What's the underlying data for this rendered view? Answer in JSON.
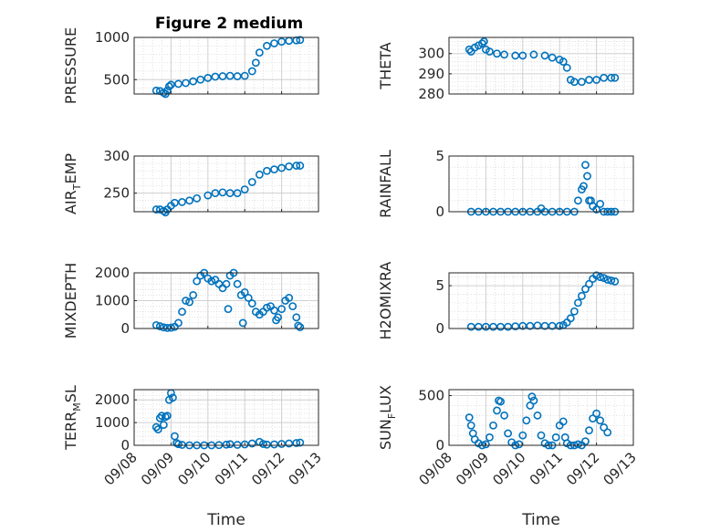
{
  "chart_data": [
    {
      "type": "scatter",
      "title": "Figure 2 medium",
      "ylabel": [
        "PRESSURE"
      ],
      "xlim": [
        1,
        6
      ],
      "ylim": [
        330,
        1000
      ],
      "yticks": [
        500,
        1000
      ],
      "ytick_labels": [
        "500",
        "1000"
      ],
      "xticks": [],
      "xtick_labels": [],
      "xlabel": "",
      "grid": true,
      "color": "#0072BD",
      "points": [
        [
          1.6,
          370
        ],
        [
          1.7,
          365
        ],
        [
          1.8,
          345
        ],
        [
          1.85,
          330
        ],
        [
          1.9,
          370
        ],
        [
          1.95,
          420
        ],
        [
          2.0,
          440
        ],
        [
          2.2,
          450
        ],
        [
          2.4,
          460
        ],
        [
          2.6,
          480
        ],
        [
          2.8,
          500
        ],
        [
          3.0,
          520
        ],
        [
          3.2,
          535
        ],
        [
          3.4,
          540
        ],
        [
          3.6,
          545
        ],
        [
          3.8,
          540
        ],
        [
          4.0,
          545
        ],
        [
          4.2,
          600
        ],
        [
          4.3,
          700
        ],
        [
          4.4,
          820
        ],
        [
          4.6,
          900
        ],
        [
          4.8,
          930
        ],
        [
          5.0,
          950
        ],
        [
          5.2,
          960
        ],
        [
          5.4,
          965
        ],
        [
          5.5,
          970
        ]
      ]
    },
    {
      "type": "scatter",
      "ylabel": [
        "THETA"
      ],
      "xlim": [
        1,
        6
      ],
      "ylim": [
        280,
        308
      ],
      "yticks": [
        280,
        290,
        300
      ],
      "ytick_labels": [
        "280",
        "290",
        "300"
      ],
      "xticks": [],
      "xtick_labels": [],
      "xlabel": "",
      "grid": true,
      "color": "#0072BD",
      "points": [
        [
          1.55,
          302
        ],
        [
          1.6,
          301
        ],
        [
          1.7,
          303
        ],
        [
          1.8,
          304
        ],
        [
          1.9,
          305
        ],
        [
          1.95,
          306
        ],
        [
          2.0,
          302
        ],
        [
          2.1,
          301
        ],
        [
          2.3,
          300
        ],
        [
          2.5,
          299.5
        ],
        [
          2.8,
          299
        ],
        [
          3.0,
          299
        ],
        [
          3.3,
          299.5
        ],
        [
          3.6,
          299
        ],
        [
          3.8,
          298
        ],
        [
          4.0,
          297
        ],
        [
          4.1,
          296
        ],
        [
          4.2,
          293
        ],
        [
          4.3,
          287
        ],
        [
          4.4,
          286
        ],
        [
          4.6,
          286
        ],
        [
          4.8,
          287
        ],
        [
          5.0,
          287
        ],
        [
          5.2,
          288
        ],
        [
          5.4,
          288
        ],
        [
          5.5,
          288
        ]
      ]
    },
    {
      "type": "scatter",
      "ylabel": [
        "AIR",
        "T",
        "EMP"
      ],
      "xlim": [
        1,
        6
      ],
      "ylim": [
        225,
        300
      ],
      "yticks": [
        250,
        300
      ],
      "ytick_labels": [
        "250",
        "300"
      ],
      "xticks": [],
      "xtick_labels": [],
      "xlabel": "",
      "grid": true,
      "color": "#0072BD",
      "points": [
        [
          1.6,
          228
        ],
        [
          1.7,
          228
        ],
        [
          1.8,
          226
        ],
        [
          1.85,
          224
        ],
        [
          1.9,
          228
        ],
        [
          2.0,
          233
        ],
        [
          2.1,
          237
        ],
        [
          2.3,
          238
        ],
        [
          2.5,
          240
        ],
        [
          2.7,
          243
        ],
        [
          3.0,
          247
        ],
        [
          3.2,
          250
        ],
        [
          3.4,
          251
        ],
        [
          3.6,
          250
        ],
        [
          3.8,
          250
        ],
        [
          4.0,
          255
        ],
        [
          4.2,
          265
        ],
        [
          4.4,
          275
        ],
        [
          4.6,
          280
        ],
        [
          4.8,
          282
        ],
        [
          5.0,
          284
        ],
        [
          5.2,
          286
        ],
        [
          5.4,
          287
        ],
        [
          5.5,
          287
        ]
      ]
    },
    {
      "type": "scatter",
      "ylabel": [
        "RAINFALL"
      ],
      "xlim": [
        1,
        6
      ],
      "ylim": [
        0,
        5
      ],
      "yticks": [
        0,
        5
      ],
      "ytick_labels": [
        "0",
        "5"
      ],
      "xticks": [],
      "xtick_labels": [],
      "xlabel": "",
      "grid": true,
      "color": "#0072BD",
      "points": [
        [
          1.6,
          0
        ],
        [
          1.8,
          0
        ],
        [
          2.0,
          0
        ],
        [
          2.2,
          0
        ],
        [
          2.4,
          0
        ],
        [
          2.6,
          0
        ],
        [
          2.8,
          0
        ],
        [
          3.0,
          0
        ],
        [
          3.2,
          0
        ],
        [
          3.4,
          0
        ],
        [
          3.5,
          0.3
        ],
        [
          3.6,
          0
        ],
        [
          3.8,
          0
        ],
        [
          4.0,
          0
        ],
        [
          4.2,
          0
        ],
        [
          4.4,
          0
        ],
        [
          4.5,
          1.0
        ],
        [
          4.6,
          2.0
        ],
        [
          4.65,
          2.3
        ],
        [
          4.7,
          4.2
        ],
        [
          4.75,
          3.2
        ],
        [
          4.8,
          1.0
        ],
        [
          4.85,
          1.0
        ],
        [
          4.9,
          0.5
        ],
        [
          5.0,
          0.2
        ],
        [
          5.1,
          0.7
        ],
        [
          5.2,
          0
        ],
        [
          5.3,
          0
        ],
        [
          5.4,
          0
        ],
        [
          5.5,
          0
        ]
      ]
    },
    {
      "type": "scatter",
      "ylabel": [
        "MIXDEPTH"
      ],
      "xlim": [
        1,
        6
      ],
      "ylim": [
        0,
        2000
      ],
      "yticks": [
        0,
        1000,
        2000
      ],
      "ytick_labels": [
        "0",
        "1000",
        "2000"
      ],
      "xticks": [],
      "xtick_labels": [],
      "xlabel": "",
      "grid": true,
      "color": "#0072BD",
      "points": [
        [
          1.6,
          120
        ],
        [
          1.7,
          80
        ],
        [
          1.8,
          40
        ],
        [
          1.9,
          20
        ],
        [
          2.0,
          30
        ],
        [
          2.1,
          60
        ],
        [
          2.2,
          200
        ],
        [
          2.3,
          600
        ],
        [
          2.4,
          1000
        ],
        [
          2.5,
          950
        ],
        [
          2.6,
          1200
        ],
        [
          2.7,
          1700
        ],
        [
          2.8,
          1900
        ],
        [
          2.9,
          2000
        ],
        [
          3.0,
          1800
        ],
        [
          3.1,
          1700
        ],
        [
          3.2,
          1750
        ],
        [
          3.3,
          1600
        ],
        [
          3.4,
          1450
        ],
        [
          3.5,
          1600
        ],
        [
          3.55,
          700
        ],
        [
          3.6,
          1900
        ],
        [
          3.7,
          2000
        ],
        [
          3.8,
          1600
        ],
        [
          3.9,
          1200
        ],
        [
          3.95,
          200
        ],
        [
          4.0,
          1300
        ],
        [
          4.1,
          1100
        ],
        [
          4.2,
          900
        ],
        [
          4.3,
          600
        ],
        [
          4.4,
          500
        ],
        [
          4.5,
          600
        ],
        [
          4.6,
          750
        ],
        [
          4.7,
          800
        ],
        [
          4.8,
          650
        ],
        [
          4.85,
          300
        ],
        [
          4.9,
          400
        ],
        [
          5.0,
          700
        ],
        [
          5.1,
          1000
        ],
        [
          5.2,
          1100
        ],
        [
          5.3,
          800
        ],
        [
          5.4,
          400
        ],
        [
          5.45,
          100
        ],
        [
          5.5,
          50
        ]
      ]
    },
    {
      "type": "scatter",
      "ylabel": [
        "H2OMIXRA"
      ],
      "xlim": [
        1,
        6
      ],
      "ylim": [
        0,
        6.5
      ],
      "yticks": [
        0,
        5
      ],
      "ytick_labels": [
        "0",
        "5"
      ],
      "xticks": [],
      "xtick_labels": [],
      "xlabel": "",
      "grid": true,
      "color": "#0072BD",
      "points": [
        [
          1.6,
          0.2
        ],
        [
          1.8,
          0.2
        ],
        [
          2.0,
          0.2
        ],
        [
          2.2,
          0.2
        ],
        [
          2.4,
          0.2
        ],
        [
          2.6,
          0.2
        ],
        [
          2.8,
          0.25
        ],
        [
          3.0,
          0.3
        ],
        [
          3.2,
          0.3
        ],
        [
          3.4,
          0.35
        ],
        [
          3.6,
          0.3
        ],
        [
          3.8,
          0.3
        ],
        [
          4.0,
          0.3
        ],
        [
          4.1,
          0.4
        ],
        [
          4.2,
          0.7
        ],
        [
          4.3,
          1.2
        ],
        [
          4.4,
          2.0
        ],
        [
          4.5,
          3.0
        ],
        [
          4.6,
          3.8
        ],
        [
          4.7,
          4.6
        ],
        [
          4.8,
          5.2
        ],
        [
          4.9,
          5.8
        ],
        [
          5.0,
          6.2
        ],
        [
          5.1,
          6.0
        ],
        [
          5.2,
          5.9
        ],
        [
          5.3,
          5.7
        ],
        [
          5.4,
          5.6
        ],
        [
          5.5,
          5.5
        ]
      ]
    },
    {
      "type": "scatter",
      "ylabel": [
        "TERR",
        "M",
        "SL"
      ],
      "xlim": [
        1,
        6
      ],
      "ylim": [
        0,
        2450
      ],
      "yticks": [
        0,
        1000,
        2000
      ],
      "ytick_labels": [
        "0",
        "1000",
        "2000"
      ],
      "xticks": [
        1,
        2,
        3,
        4,
        5,
        6
      ],
      "xtick_labels": [
        "09/08",
        "09/09",
        "09/10",
        "09/11",
        "09/12",
        "09/13"
      ],
      "xlabel": "Time",
      "grid": true,
      "color": "#0072BD",
      "points": [
        [
          1.6,
          800
        ],
        [
          1.65,
          700
        ],
        [
          1.7,
          1200
        ],
        [
          1.75,
          1300
        ],
        [
          1.8,
          900
        ],
        [
          1.85,
          1250
        ],
        [
          1.9,
          1300
        ],
        [
          1.95,
          2000
        ],
        [
          2.0,
          2300
        ],
        [
          2.05,
          2100
        ],
        [
          2.1,
          400
        ],
        [
          2.15,
          100
        ],
        [
          2.2,
          50
        ],
        [
          2.3,
          20
        ],
        [
          2.5,
          0
        ],
        [
          2.7,
          0
        ],
        [
          2.9,
          0
        ],
        [
          3.1,
          0
        ],
        [
          3.3,
          10
        ],
        [
          3.5,
          30
        ],
        [
          3.6,
          50
        ],
        [
          3.8,
          20
        ],
        [
          4.0,
          40
        ],
        [
          4.2,
          80
        ],
        [
          4.4,
          150
        ],
        [
          4.5,
          60
        ],
        [
          4.6,
          30
        ],
        [
          4.8,
          40
        ],
        [
          5.0,
          60
        ],
        [
          5.2,
          80
        ],
        [
          5.4,
          100
        ],
        [
          5.5,
          120
        ]
      ]
    },
    {
      "type": "scatter",
      "ylabel": [
        "SUN",
        "F",
        "LUX"
      ],
      "xlim": [
        1,
        6
      ],
      "ylim": [
        0,
        560
      ],
      "yticks": [
        0,
        500
      ],
      "ytick_labels": [
        "0",
        "500"
      ],
      "xticks": [
        1,
        2,
        3,
        4,
        5,
        6
      ],
      "xtick_labels": [
        "09/08",
        "09/09",
        "09/10",
        "09/11",
        "09/12",
        "09/13"
      ],
      "xlabel": "Time",
      "grid": true,
      "color": "#0072BD",
      "points": [
        [
          1.55,
          280
        ],
        [
          1.6,
          200
        ],
        [
          1.65,
          120
        ],
        [
          1.7,
          60
        ],
        [
          1.8,
          20
        ],
        [
          1.9,
          0
        ],
        [
          2.0,
          10
        ],
        [
          2.1,
          80
        ],
        [
          2.2,
          200
        ],
        [
          2.3,
          350
        ],
        [
          2.35,
          450
        ],
        [
          2.4,
          440
        ],
        [
          2.5,
          300
        ],
        [
          2.6,
          120
        ],
        [
          2.7,
          30
        ],
        [
          2.8,
          0
        ],
        [
          2.9,
          10
        ],
        [
          3.0,
          100
        ],
        [
          3.1,
          250
        ],
        [
          3.2,
          400
        ],
        [
          3.25,
          490
        ],
        [
          3.3,
          450
        ],
        [
          3.4,
          300
        ],
        [
          3.5,
          100
        ],
        [
          3.6,
          20
        ],
        [
          3.7,
          0
        ],
        [
          3.8,
          0
        ],
        [
          3.9,
          80
        ],
        [
          4.0,
          200
        ],
        [
          4.1,
          240
        ],
        [
          4.15,
          80
        ],
        [
          4.2,
          20
        ],
        [
          4.3,
          0
        ],
        [
          4.4,
          0
        ],
        [
          4.5,
          10
        ],
        [
          4.6,
          0
        ],
        [
          4.7,
          40
        ],
        [
          4.8,
          150
        ],
        [
          4.9,
          270
        ],
        [
          5.0,
          320
        ],
        [
          5.1,
          250
        ],
        [
          5.2,
          180
        ],
        [
          5.3,
          130
        ]
      ]
    }
  ]
}
